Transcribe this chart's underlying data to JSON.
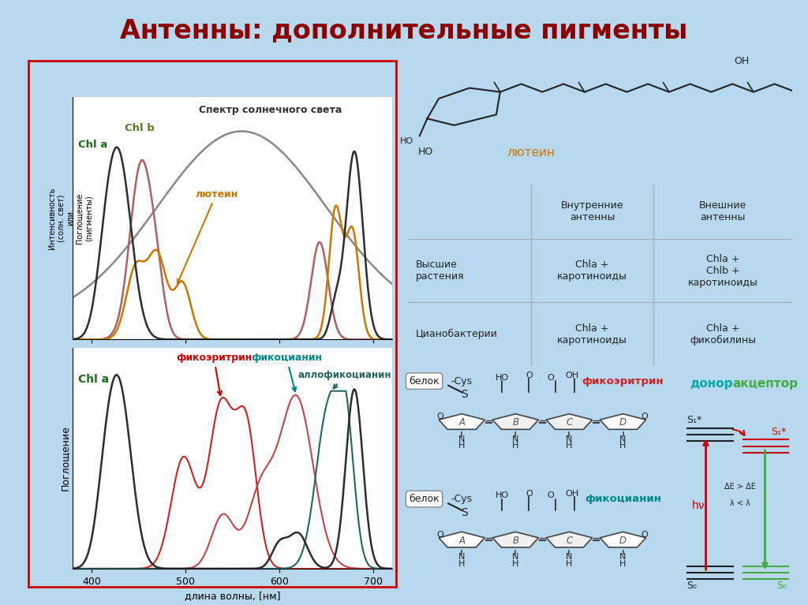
{
  "title": "Антенны: дополнительные пигменты",
  "title_color": "#8B0000",
  "title_fontsize": 24,
  "bg_outer": "#b8d8ee",
  "bg_title_box": "#e8f5e0",
  "solar_color": "#888888",
  "chl_a_color_top": "#2d2d2d",
  "chl_b_color_top": "#b06060",
  "lutein_color": "#cc7700",
  "chl_a_color_bottom": "#2d2d2d",
  "phycoerythrin_color": "#cc2222",
  "phycocyanin_color": "#bb3333",
  "allophycocyanin_color": "#226666",
  "annotation_chla_top": "Chl a",
  "annotation_chlb_top": "Chl b",
  "annotation_lutein": "лютеин",
  "annotation_chla_bottom": "Chl a",
  "annotation_phycoerythrin": "фикоэритрин",
  "annotation_phycocyanin": "фикоцианин",
  "annotation_allophycocyanin": "аллофикоцианин",
  "top_chart_ylabel": "Интенсивность\n(солн. свет)\nили\nПоглощение\n(пигменты)",
  "top_chart_title": "Спектр солнечного света",
  "bottom_chart_ylabel": "Поглощение",
  "bottom_chart_xlabel": "длина волны, [нм]",
  "table_title_inner": "Внутренние\nантенны",
  "table_title_outer": "Внешние\nантенны",
  "table_row1_label": "Высшие\nрастения",
  "table_row1_inner": "Chla +\nкаротиноиды",
  "table_row1_outer": "Chla +\nChlb +\nкаротиноиды",
  "table_row2_label": "Цианобактерии",
  "table_row2_inner": "Chla +\nкаротиноиды",
  "table_row2_outer": "Chla +\nфикобилины",
  "lutein_label": "лютеин",
  "phycoerythrin_label": "фикоэритрин",
  "phycocyanin_label": "фикоцианин",
  "protein_label": "белок",
  "donor_label": "донор",
  "acceptor_label": "акцептор",
  "red_border": "#cc0000",
  "teal_color": "#008888",
  "energy_bg": "#d8eeff"
}
